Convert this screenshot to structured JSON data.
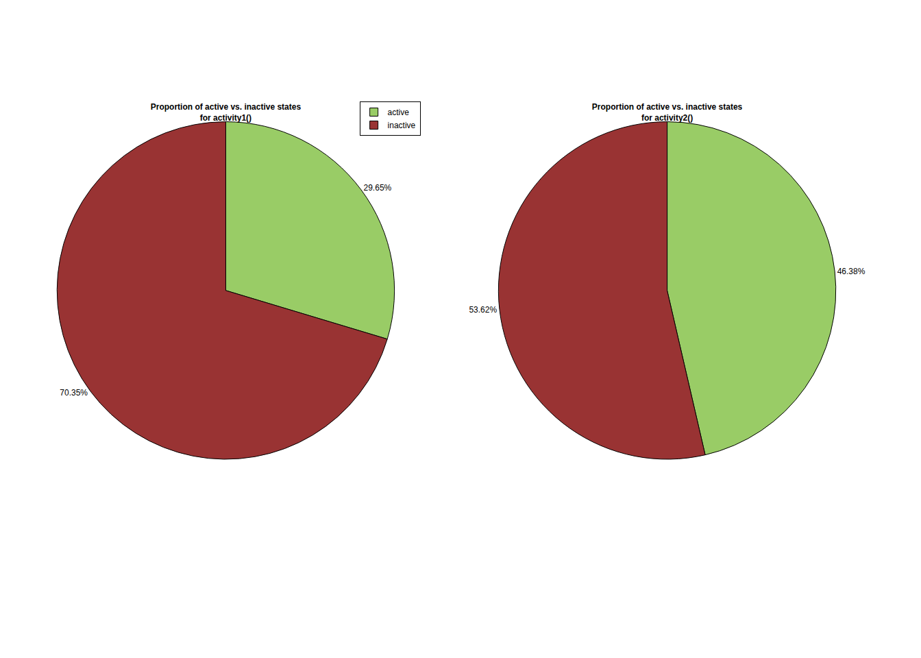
{
  "chart_data": [
    {
      "type": "pie",
      "title": "Proportion of active vs. inactive states\nfor activity1()",
      "categories": [
        "active",
        "inactive"
      ],
      "values": [
        29.65,
        70.35
      ],
      "value_labels": [
        "29.65%",
        "70.35%"
      ],
      "colors": [
        "#99cc66",
        "#993333"
      ],
      "data_labels": true,
      "legend": "upper right"
    },
    {
      "type": "pie",
      "title": "Proportion of active vs. inactive states\nfor activity2()",
      "categories": [
        "active",
        "inactive"
      ],
      "values": [
        46.38,
        53.62
      ],
      "value_labels": [
        "46.38%",
        "53.62%"
      ],
      "colors": [
        "#99cc66",
        "#993333"
      ],
      "data_labels": true,
      "legend": "upper right"
    }
  ]
}
